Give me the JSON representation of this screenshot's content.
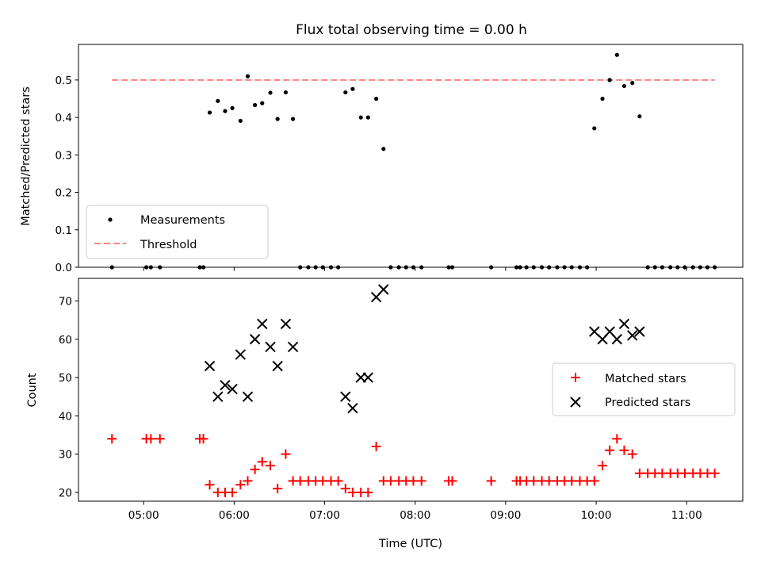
{
  "chart_data": {
    "title": "Flux total observing time = 0.00 h",
    "x_axis": {
      "label": "Time (UTC)",
      "unit": "hours",
      "range": [
        4.28,
        11.62
      ],
      "ticks": [
        5,
        6,
        7,
        8,
        9,
        10,
        11
      ],
      "tick_labels": [
        "05:00",
        "06:00",
        "07:00",
        "08:00",
        "09:00",
        "10:00",
        "11:00"
      ]
    },
    "panels": [
      {
        "type": "scatter",
        "ylabel": "Matched/Predicted stars",
        "ylim": [
          0,
          0.595
        ],
        "yticks": [
          0.0,
          0.1,
          0.2,
          0.3,
          0.4,
          0.5
        ],
        "ytick_labels": [
          "0.0",
          "0.1",
          "0.2",
          "0.3",
          "0.4",
          "0.5"
        ],
        "legend": {
          "position": "lower-left",
          "entries": [
            {
              "label": "Measurements",
              "marker": "dot"
            },
            {
              "label": "Threshold",
              "marker": "dashed-line"
            }
          ]
        },
        "series": [
          {
            "name": "Measurements",
            "color": "#000000",
            "marker": "dot",
            "points": [
              [
                4.65,
                0
              ],
              [
                5.03,
                0
              ],
              [
                5.08,
                0
              ],
              [
                5.18,
                0
              ],
              [
                5.62,
                0
              ],
              [
                5.66,
                0
              ],
              [
                5.73,
                0.413
              ],
              [
                5.82,
                0.444
              ],
              [
                5.9,
                0.417
              ],
              [
                5.98,
                0.425
              ],
              [
                6.07,
                0.391
              ],
              [
                6.15,
                0.51
              ],
              [
                6.23,
                0.433
              ],
              [
                6.31,
                0.438
              ],
              [
                6.4,
                0.466
              ],
              [
                6.48,
                0.396
              ],
              [
                6.57,
                0.467
              ],
              [
                6.65,
                0.396
              ],
              [
                6.73,
                0
              ],
              [
                6.82,
                0
              ],
              [
                6.9,
                0
              ],
              [
                6.98,
                0
              ],
              [
                7.07,
                0
              ],
              [
                7.15,
                0
              ],
              [
                7.23,
                0.467
              ],
              [
                7.31,
                0.476
              ],
              [
                7.4,
                0.4
              ],
              [
                7.48,
                0.4
              ],
              [
                7.57,
                0.45
              ],
              [
                7.65,
                0.316
              ],
              [
                7.73,
                0
              ],
              [
                7.82,
                0
              ],
              [
                7.9,
                0
              ],
              [
                7.98,
                0
              ],
              [
                8.07,
                0
              ],
              [
                8.37,
                0
              ],
              [
                8.41,
                0
              ],
              [
                8.84,
                0
              ],
              [
                9.12,
                0
              ],
              [
                9.16,
                0
              ],
              [
                9.23,
                0
              ],
              [
                9.31,
                0
              ],
              [
                9.4,
                0
              ],
              [
                9.48,
                0
              ],
              [
                9.57,
                0
              ],
              [
                9.65,
                0
              ],
              [
                9.73,
                0
              ],
              [
                9.82,
                0
              ],
              [
                9.9,
                0
              ],
              [
                9.98,
                0.371
              ],
              [
                10.07,
                0.45
              ],
              [
                10.15,
                0.5
              ],
              [
                10.23,
                0.567
              ],
              [
                10.31,
                0.484
              ],
              [
                10.4,
                0.492
              ],
              [
                10.48,
                0.403
              ],
              [
                10.57,
                0
              ],
              [
                10.65,
                0
              ],
              [
                10.73,
                0
              ],
              [
                10.82,
                0
              ],
              [
                10.9,
                0
              ],
              [
                10.98,
                0
              ],
              [
                11.07,
                0
              ],
              [
                11.15,
                0
              ],
              [
                11.23,
                0
              ],
              [
                11.31,
                0
              ]
            ]
          },
          {
            "name": "Threshold",
            "color": "#ff7f7f",
            "style": "dashed",
            "points": [
              [
                4.65,
                0.5
              ],
              [
                11.31,
                0.5
              ]
            ]
          }
        ]
      },
      {
        "type": "scatter",
        "ylabel": "Count",
        "ylim": [
          17.7,
          75.9
        ],
        "yticks": [
          20,
          30,
          40,
          50,
          60,
          70
        ],
        "ytick_labels": [
          "20",
          "30",
          "40",
          "50",
          "60",
          "70"
        ],
        "legend": {
          "position": "center-right",
          "entries": [
            {
              "label": "Matched stars",
              "marker": "plus"
            },
            {
              "label": "Predicted stars",
              "marker": "x"
            }
          ]
        },
        "series": [
          {
            "name": "Matched stars",
            "color": "#ff0000",
            "marker": "plus",
            "points": [
              [
                4.65,
                34
              ],
              [
                5.03,
                34
              ],
              [
                5.08,
                34
              ],
              [
                5.18,
                34
              ],
              [
                5.62,
                34
              ],
              [
                5.66,
                34
              ],
              [
                5.73,
                22
              ],
              [
                5.82,
                20
              ],
              [
                5.9,
                20
              ],
              [
                5.98,
                20
              ],
              [
                6.07,
                22
              ],
              [
                6.15,
                23
              ],
              [
                6.23,
                26
              ],
              [
                6.31,
                28
              ],
              [
                6.4,
                27
              ],
              [
                6.48,
                21
              ],
              [
                6.57,
                30
              ],
              [
                6.65,
                23
              ],
              [
                6.73,
                23
              ],
              [
                6.82,
                23
              ],
              [
                6.9,
                23
              ],
              [
                6.98,
                23
              ],
              [
                7.07,
                23
              ],
              [
                7.15,
                23
              ],
              [
                7.23,
                21
              ],
              [
                7.31,
                20
              ],
              [
                7.4,
                20
              ],
              [
                7.48,
                20
              ],
              [
                7.57,
                32
              ],
              [
                7.65,
                23
              ],
              [
                7.73,
                23
              ],
              [
                7.82,
                23
              ],
              [
                7.9,
                23
              ],
              [
                7.98,
                23
              ],
              [
                8.07,
                23
              ],
              [
                8.37,
                23
              ],
              [
                8.41,
                23
              ],
              [
                8.84,
                23
              ],
              [
                9.12,
                23
              ],
              [
                9.16,
                23
              ],
              [
                9.23,
                23
              ],
              [
                9.31,
                23
              ],
              [
                9.4,
                23
              ],
              [
                9.48,
                23
              ],
              [
                9.57,
                23
              ],
              [
                9.65,
                23
              ],
              [
                9.73,
                23
              ],
              [
                9.82,
                23
              ],
              [
                9.9,
                23
              ],
              [
                9.98,
                23
              ],
              [
                10.07,
                27
              ],
              [
                10.15,
                31
              ],
              [
                10.23,
                34
              ],
              [
                10.31,
                31
              ],
              [
                10.4,
                30
              ],
              [
                10.48,
                25
              ],
              [
                10.57,
                25
              ],
              [
                10.65,
                25
              ],
              [
                10.73,
                25
              ],
              [
                10.82,
                25
              ],
              [
                10.9,
                25
              ],
              [
                10.98,
                25
              ],
              [
                11.07,
                25
              ],
              [
                11.15,
                25
              ],
              [
                11.23,
                25
              ],
              [
                11.31,
                25
              ]
            ]
          },
          {
            "name": "Predicted stars",
            "color": "#000000",
            "marker": "x",
            "points": [
              [
                5.73,
                53
              ],
              [
                5.82,
                45
              ],
              [
                5.9,
                48
              ],
              [
                5.98,
                47
              ],
              [
                6.07,
                56
              ],
              [
                6.15,
                45
              ],
              [
                6.23,
                60
              ],
              [
                6.31,
                64
              ],
              [
                6.4,
                58
              ],
              [
                6.48,
                53
              ],
              [
                6.57,
                64
              ],
              [
                6.65,
                58
              ],
              [
                7.23,
                45
              ],
              [
                7.31,
                42
              ],
              [
                7.4,
                50
              ],
              [
                7.48,
                50
              ],
              [
                7.57,
                71
              ],
              [
                7.65,
                73
              ],
              [
                9.98,
                62
              ],
              [
                10.07,
                60
              ],
              [
                10.15,
                62
              ],
              [
                10.23,
                60
              ],
              [
                10.31,
                64
              ],
              [
                10.4,
                61
              ],
              [
                10.48,
                62
              ]
            ]
          }
        ]
      }
    ]
  }
}
